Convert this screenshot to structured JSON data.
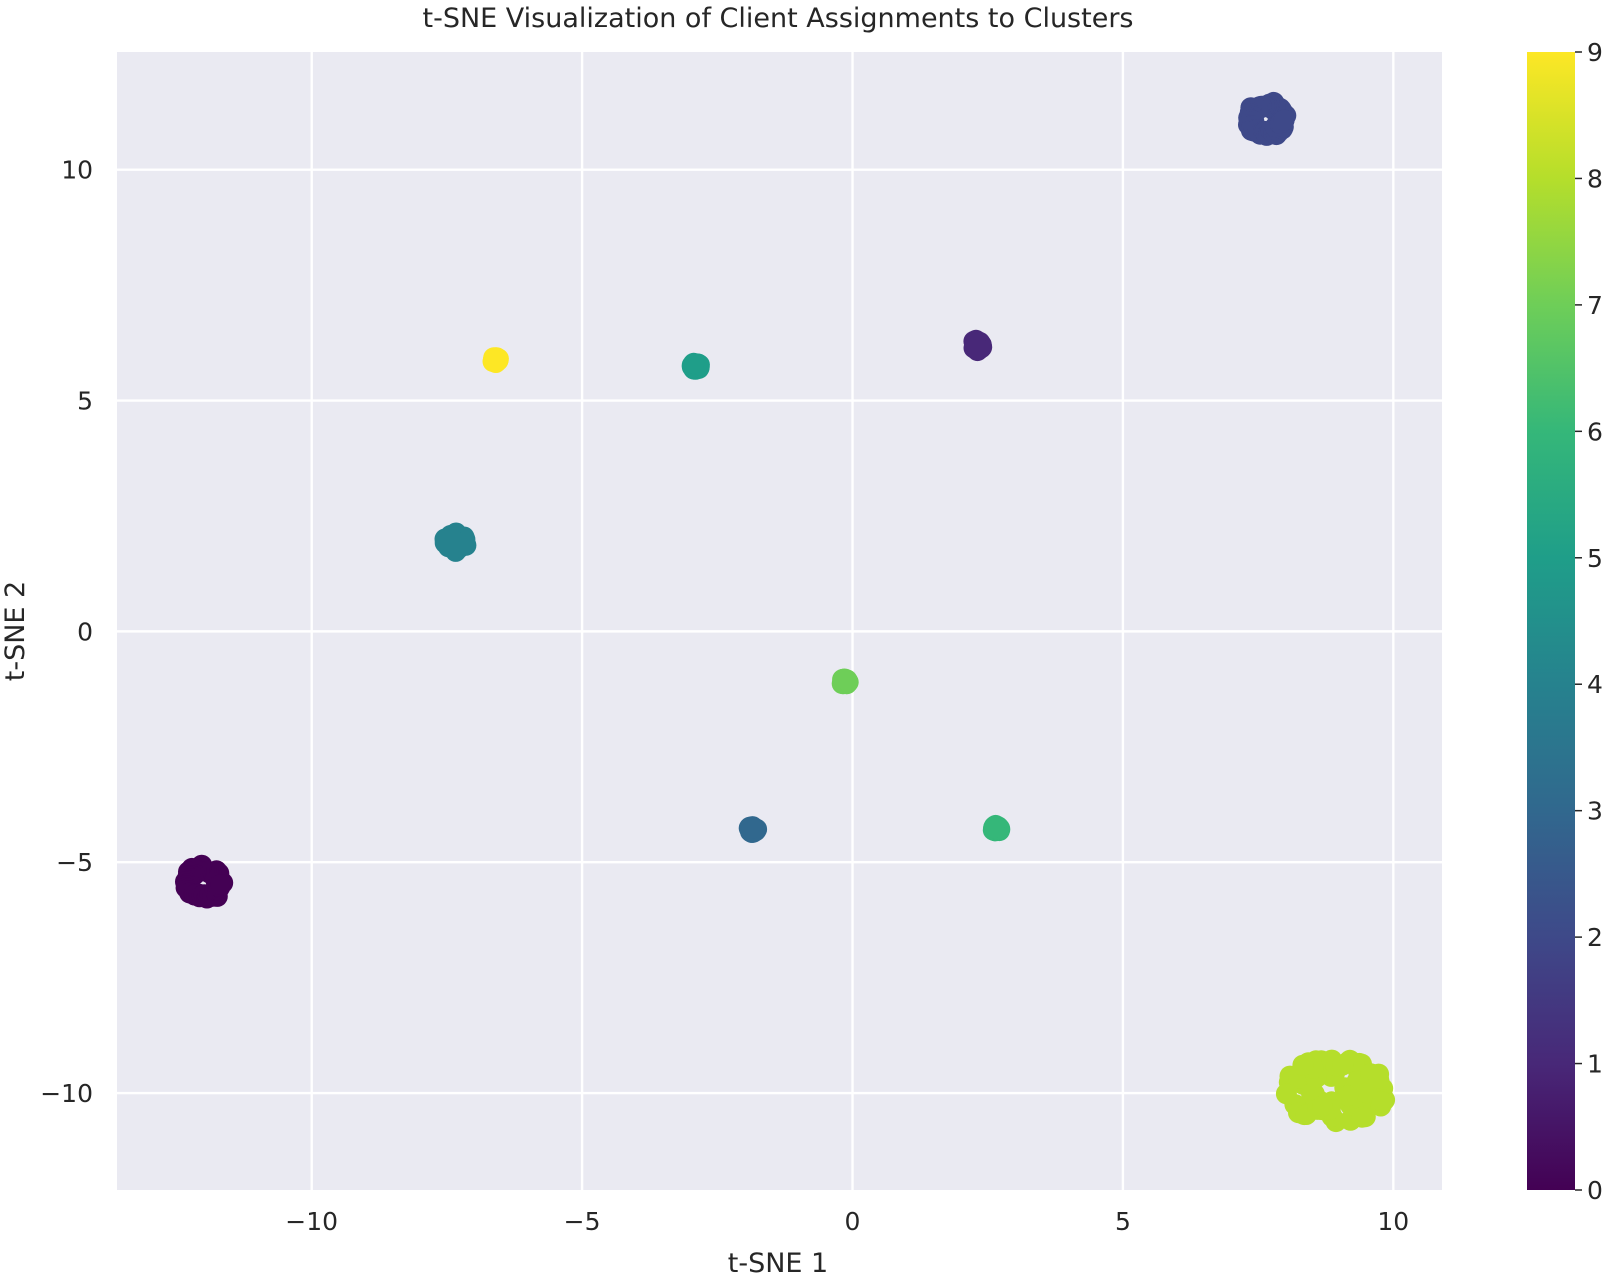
{
  "chart_data": {
    "type": "scatter",
    "title": "t-SNE Visualization of Client Assignments to Clusters",
    "xlabel": "t-SNE 1",
    "ylabel": "t-SNE 2",
    "xlim": [
      -13.6,
      10.9
    ],
    "ylim": [
      -12.1,
      12.55
    ],
    "xticks": [
      -10,
      -5,
      0,
      5,
      10
    ],
    "yticks": [
      -10,
      -5,
      0,
      5,
      10
    ],
    "xtick_labels": [
      "−10",
      "−5",
      "0",
      "5",
      "10"
    ],
    "ytick_labels": [
      "−10",
      "−5",
      "0",
      "5",
      "10"
    ],
    "grid": true,
    "plot_background": "#eaeaf2",
    "grid_color": "#ffffff",
    "colormap": "viridis",
    "colorbar": {
      "range": [
        0,
        9
      ],
      "ticks": [
        0,
        1,
        2,
        3,
        4,
        5,
        6,
        7,
        8,
        9
      ],
      "tick_labels": [
        "0",
        "1",
        "2",
        "3",
        "4",
        "5",
        "6",
        "7",
        "8",
        "9"
      ],
      "colors": [
        "#440154",
        "#482878",
        "#3e4989",
        "#31688e",
        "#26828e",
        "#1f9e89",
        "#35b779",
        "#6ece58",
        "#b5de2b",
        "#fde725"
      ]
    },
    "clusters": [
      {
        "label": 0,
        "shape": "ring",
        "center": [
          -12.0,
          -5.45
        ],
        "spread": 0.42,
        "color": "#440154"
      },
      {
        "label": 1,
        "shape": "blob",
        "center": [
          2.3,
          6.2
        ],
        "spread": 0.12,
        "color": "#482878"
      },
      {
        "label": 2,
        "shape": "ring",
        "center": [
          7.65,
          11.1
        ],
        "spread": 0.42,
        "color": "#3e4989"
      },
      {
        "label": 3,
        "shape": "blob",
        "center": [
          -1.85,
          -4.3
        ],
        "spread": 0.08,
        "color": "#31688e"
      },
      {
        "label": 4,
        "shape": "blob",
        "center": [
          -7.35,
          1.95
        ],
        "spread": 0.22,
        "color": "#26828e"
      },
      {
        "label": 5,
        "shape": "blob",
        "center": [
          -2.9,
          5.75
        ],
        "spread": 0.08,
        "color": "#1f9e89"
      },
      {
        "label": 6,
        "shape": "blob",
        "center": [
          2.65,
          -4.28
        ],
        "spread": 0.08,
        "color": "#35b779"
      },
      {
        "label": 7,
        "shape": "blob",
        "center": [
          -0.15,
          -1.08
        ],
        "spread": 0.08,
        "color": "#6ece58"
      },
      {
        "label": 8,
        "shape": "scatter",
        "center": [
          8.9,
          -9.95
        ],
        "spread": 0.55,
        "color": "#b5de2b"
      },
      {
        "label": 9,
        "shape": "blob",
        "center": [
          -6.6,
          5.88
        ],
        "spread": 0.06,
        "color": "#fde725"
      }
    ]
  }
}
